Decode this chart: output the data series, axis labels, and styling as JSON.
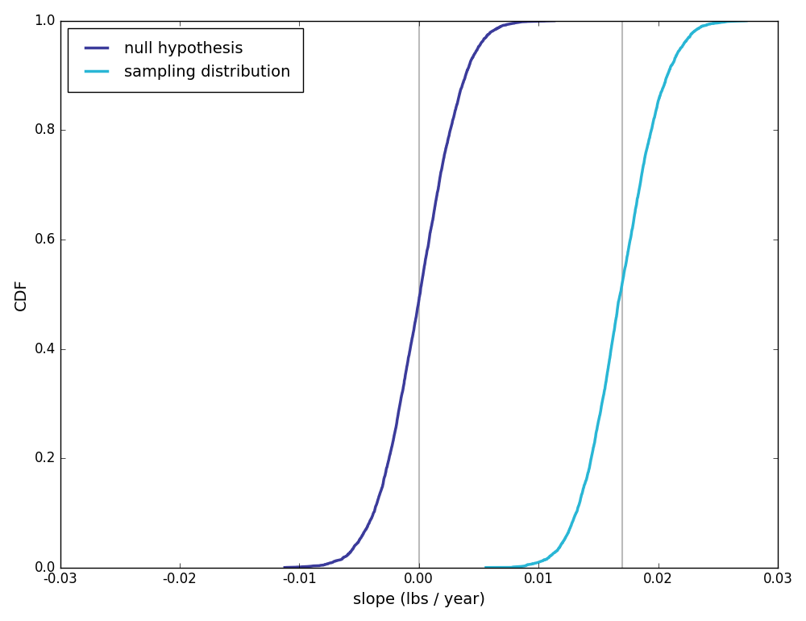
{
  "title": "",
  "xlabel": "slope (lbs / year)",
  "ylabel": "CDF",
  "xlim": [
    -0.03,
    0.03
  ],
  "ylim": [
    0.0,
    1.0
  ],
  "null_color": "#3b3b9b",
  "sampling_color": "#29b6d5",
  "null_mean": 0.0,
  "null_std": 0.003,
  "sampling_mean": 0.017,
  "sampling_std": 0.003,
  "vline1_x": 0.0,
  "vline2_x": 0.017,
  "vline_color": "#bbbbbb",
  "legend_labels": [
    "null hypothesis",
    "sampling distribution"
  ],
  "n_points": 5000,
  "seed": 17
}
